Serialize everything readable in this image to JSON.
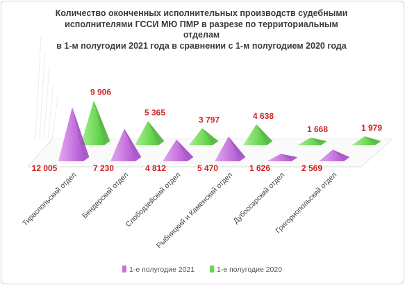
{
  "chart_data": {
    "type": "bar",
    "title_lines": [
      "Количество оконченных исполнительных производств судебными",
      "исполнителями ГССИ МЮ ПМР в разрезе по территориальным",
      "отделам",
      "в 1-м полугодии 2021 года в сравнении с 1-м полугодием 2020 года"
    ],
    "categories": [
      "Тираспольский отдел",
      "Бендерский отдел",
      "Слободзейский отдел",
      "Рыбницкий и Каменский отдел",
      "Дубоссарский отдел",
      "Григориопольский отдел"
    ],
    "series": [
      {
        "name": "1-е полугодие 2021",
        "values": [
          12005,
          7230,
          4812,
          5470,
          1626,
          2569
        ],
        "labels": [
          "12 005",
          "7 230",
          "4 812",
          "5 470",
          "1 626",
          "2 569"
        ],
        "color": "#c86ee0"
      },
      {
        "name": "1-е полугодие 2020",
        "values": [
          9906,
          5365,
          3797,
          4638,
          1668,
          1979
        ],
        "labels": [
          "9 906",
          "5 365",
          "3 797",
          "4 638",
          "1 668",
          "1 979"
        ],
        "color": "#5fdc48"
      }
    ],
    "label_color": "#d42020",
    "legend_position": "bottom"
  }
}
